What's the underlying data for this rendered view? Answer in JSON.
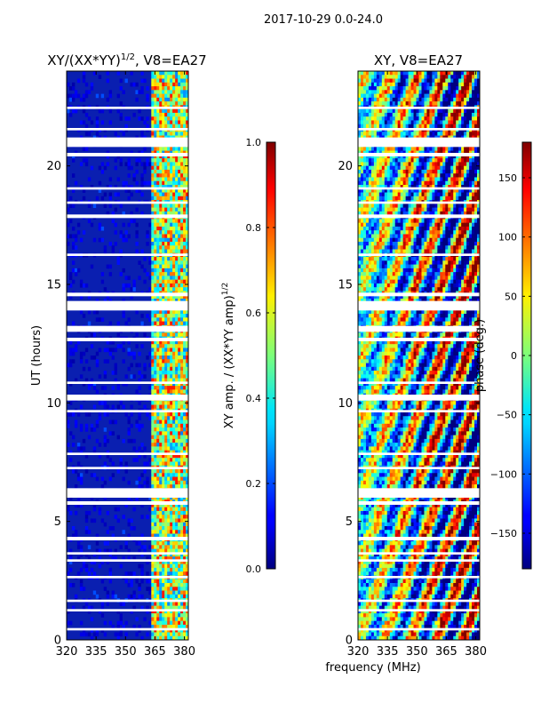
{
  "suptitle": "2017-10-29 0.0-24.0",
  "xlabel": "frequency (MHz)",
  "chart_data": [
    {
      "type": "heatmap",
      "title_main": "XY/(XX*YY)",
      "title_sup": "1/2",
      "title_tail": ", V8=EA27",
      "xlabel": "frequency (MHz)",
      "ylabel": "UT (hours)",
      "xlim": [
        320,
        382
      ],
      "ylim": [
        0,
        24
      ],
      "xticks": [
        "320",
        "335",
        "350",
        "365",
        "380"
      ],
      "xtick_values": [
        320,
        335,
        350,
        365,
        380
      ],
      "yticks": [
        "0",
        "5",
        "10",
        "15",
        "20"
      ],
      "ytick_values": [
        0,
        5,
        10,
        15,
        20
      ],
      "colorbar": {
        "label_main": "XY amp. / (XX*YY amp)",
        "label_sup": "1/2",
        "range": [
          0,
          1
        ],
        "ticks": [
          "0.0",
          "0.2",
          "0.4",
          "0.6",
          "0.8",
          "1.0"
        ],
        "tick_values": [
          0,
          0.2,
          0.4,
          0.6,
          0.8,
          1.0
        ]
      },
      "flagged_bands_hours": [
        [
          0.4,
          0.5
        ],
        [
          1.2,
          1.3
        ],
        [
          1.6,
          1.7
        ],
        [
          2.6,
          2.7
        ],
        [
          3.3,
          3.4
        ],
        [
          3.6,
          3.7
        ],
        [
          4.2,
          4.35
        ],
        [
          5.7,
          5.85
        ],
        [
          6.0,
          6.4
        ],
        [
          7.2,
          7.3
        ],
        [
          7.8,
          7.9
        ],
        [
          9.6,
          9.7
        ],
        [
          10.1,
          10.35
        ],
        [
          10.8,
          10.9
        ],
        [
          12.6,
          12.75
        ],
        [
          13.0,
          13.25
        ],
        [
          13.9,
          14.3
        ],
        [
          14.5,
          14.65
        ],
        [
          16.2,
          16.3
        ],
        [
          17.8,
          17.95
        ],
        [
          18.4,
          18.5
        ],
        [
          19.0,
          19.1
        ],
        [
          20.4,
          20.55
        ],
        [
          20.8,
          21.2
        ],
        [
          21.5,
          21.6
        ],
        [
          22.4,
          22.5
        ]
      ],
      "description_values": {
        "background_amp": 0.05,
        "band_364_382_amp": [
          0.3,
          0.9
        ]
      }
    },
    {
      "type": "heatmap",
      "title": "XY, V8=EA27",
      "xlabel": "frequency (MHz)",
      "xlim": [
        320,
        382
      ],
      "ylim": [
        0,
        24
      ],
      "xticks": [
        "320",
        "335",
        "350",
        "365",
        "380"
      ],
      "xtick_values": [
        320,
        335,
        350,
        365,
        380
      ],
      "yticks": [
        "0",
        "5",
        "10",
        "15",
        "20"
      ],
      "ytick_values": [
        0,
        5,
        10,
        15,
        20
      ],
      "colorbar": {
        "label": "phase (deg.)",
        "range": [
          -180,
          180
        ],
        "ticks": [
          "150",
          "100",
          "50",
          "0",
          "−50",
          "−100",
          "−150"
        ],
        "tick_values": [
          150,
          100,
          50,
          0,
          -50,
          -100,
          -150
        ]
      },
      "flagged_bands_hours": [
        [
          0.4,
          0.5
        ],
        [
          1.2,
          1.3
        ],
        [
          1.6,
          1.7
        ],
        [
          2.6,
          2.7
        ],
        [
          3.3,
          3.4
        ],
        [
          3.6,
          3.7
        ],
        [
          4.2,
          4.35
        ],
        [
          5.7,
          5.85
        ],
        [
          6.0,
          6.4
        ],
        [
          7.2,
          7.3
        ],
        [
          7.8,
          7.9
        ],
        [
          9.6,
          9.7
        ],
        [
          10.1,
          10.35
        ],
        [
          10.8,
          10.9
        ],
        [
          12.6,
          12.75
        ],
        [
          13.0,
          13.25
        ],
        [
          13.9,
          14.3
        ],
        [
          14.5,
          14.65
        ],
        [
          16.2,
          16.3
        ],
        [
          17.8,
          17.95
        ],
        [
          18.4,
          18.5
        ],
        [
          19.0,
          19.1
        ],
        [
          20.4,
          20.55
        ],
        [
          20.8,
          21.2
        ],
        [
          21.5,
          21.6
        ],
        [
          22.4,
          22.5
        ]
      ]
    }
  ]
}
